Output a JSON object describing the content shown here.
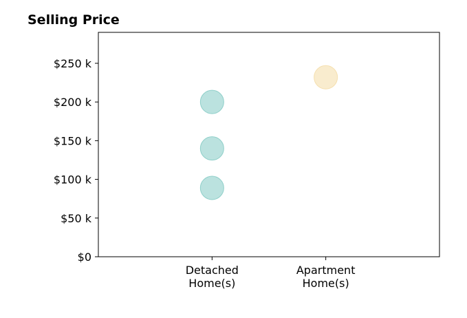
{
  "chart_data": {
    "type": "scatter",
    "title": "Selling Price",
    "xlabel": "",
    "ylabel": "",
    "categories": [
      "Detached\nHome(s)",
      "Apartment\nHome(s)"
    ],
    "xlim": [
      -1,
      2
    ],
    "ylim": [
      0,
      290000
    ],
    "yticks": [
      0,
      50000,
      100000,
      150000,
      200000,
      250000
    ],
    "ytick_labels": [
      "$0",
      "$50 k",
      "$100 k",
      "$150 k",
      "$200 k",
      "$250 k"
    ],
    "grid": false,
    "series": [
      {
        "color": "#8ecfc9",
        "points": [
          {
            "x": 0,
            "y": 200000
          },
          {
            "x": 0,
            "y": 140000
          },
          {
            "x": 0,
            "y": 89000
          }
        ]
      },
      {
        "color": "#f5dfae",
        "points": [
          {
            "x": 1,
            "y": 232000
          }
        ]
      }
    ]
  }
}
